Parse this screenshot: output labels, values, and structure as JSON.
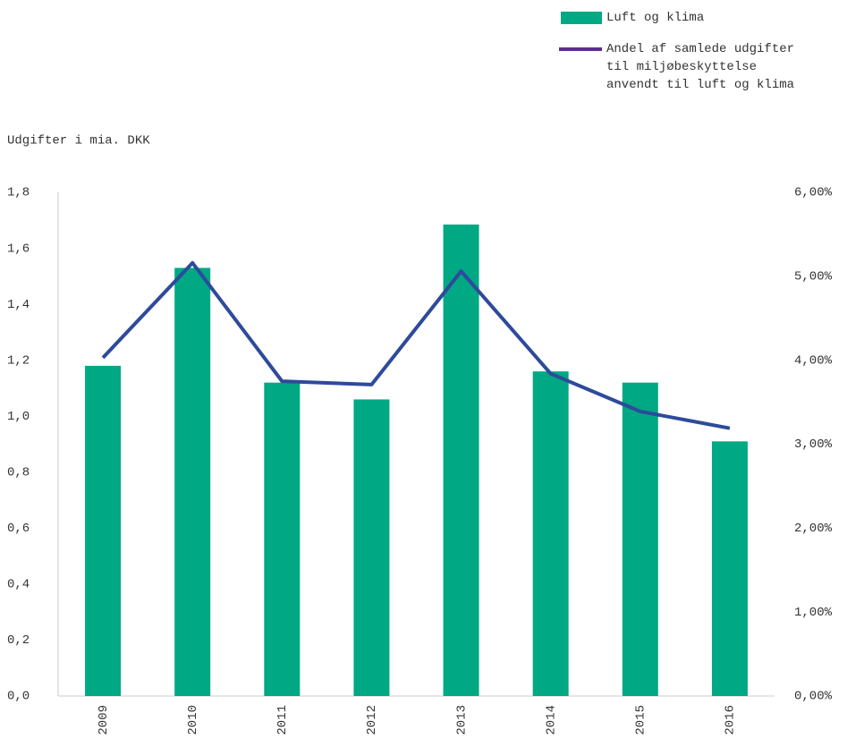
{
  "chart_data": {
    "type": "bar_line",
    "y_label": "Udgifter i mia. DKK",
    "categories": [
      "2009",
      "2010",
      "2011",
      "2012",
      "2013",
      "2014",
      "2015",
      "2016"
    ],
    "series": [
      {
        "name": "Luft og klima",
        "type": "bar",
        "color": "#00a884",
        "values": [
          1.18,
          1.53,
          1.12,
          1.06,
          1.685,
          1.16,
          1.12,
          0.91
        ]
      },
      {
        "name": "Andel af samlede udgifter til miljøbeskyttelse anvendt til luft og klima",
        "type": "line",
        "axis": "y2",
        "color": "#2e4a9a",
        "values": [
          4.03,
          5.16,
          3.75,
          3.71,
          5.06,
          3.84,
          3.39,
          3.19
        ]
      }
    ],
    "ylim": [
      0,
      1.8
    ],
    "yticks": [
      {
        "value": 0,
        "label": "0,0"
      },
      {
        "value": 0.2,
        "label": "0,2"
      },
      {
        "value": 0.4,
        "label": "0,4"
      },
      {
        "value": 0.6,
        "label": "0,6"
      },
      {
        "value": 0.8,
        "label": "0,8"
      },
      {
        "value": 1,
        "label": "1,0"
      },
      {
        "value": 1.2,
        "label": "1,2"
      },
      {
        "value": 1.4,
        "label": "1,4"
      },
      {
        "value": 1.6,
        "label": "1,6"
      },
      {
        "value": 1.8,
        "label": "1,8"
      }
    ],
    "y2lim": [
      0,
      6
    ],
    "y2ticks": [
      {
        "value": 0,
        "label": "0,00%"
      },
      {
        "value": 1,
        "label": "1,00%"
      },
      {
        "value": 2,
        "label": "2,00%"
      },
      {
        "value": 3,
        "label": "3,00%"
      },
      {
        "value": 4,
        "label": "4,00%"
      },
      {
        "value": 5,
        "label": "5,00%"
      },
      {
        "value": 6,
        "label": "6,00%"
      }
    ]
  }
}
